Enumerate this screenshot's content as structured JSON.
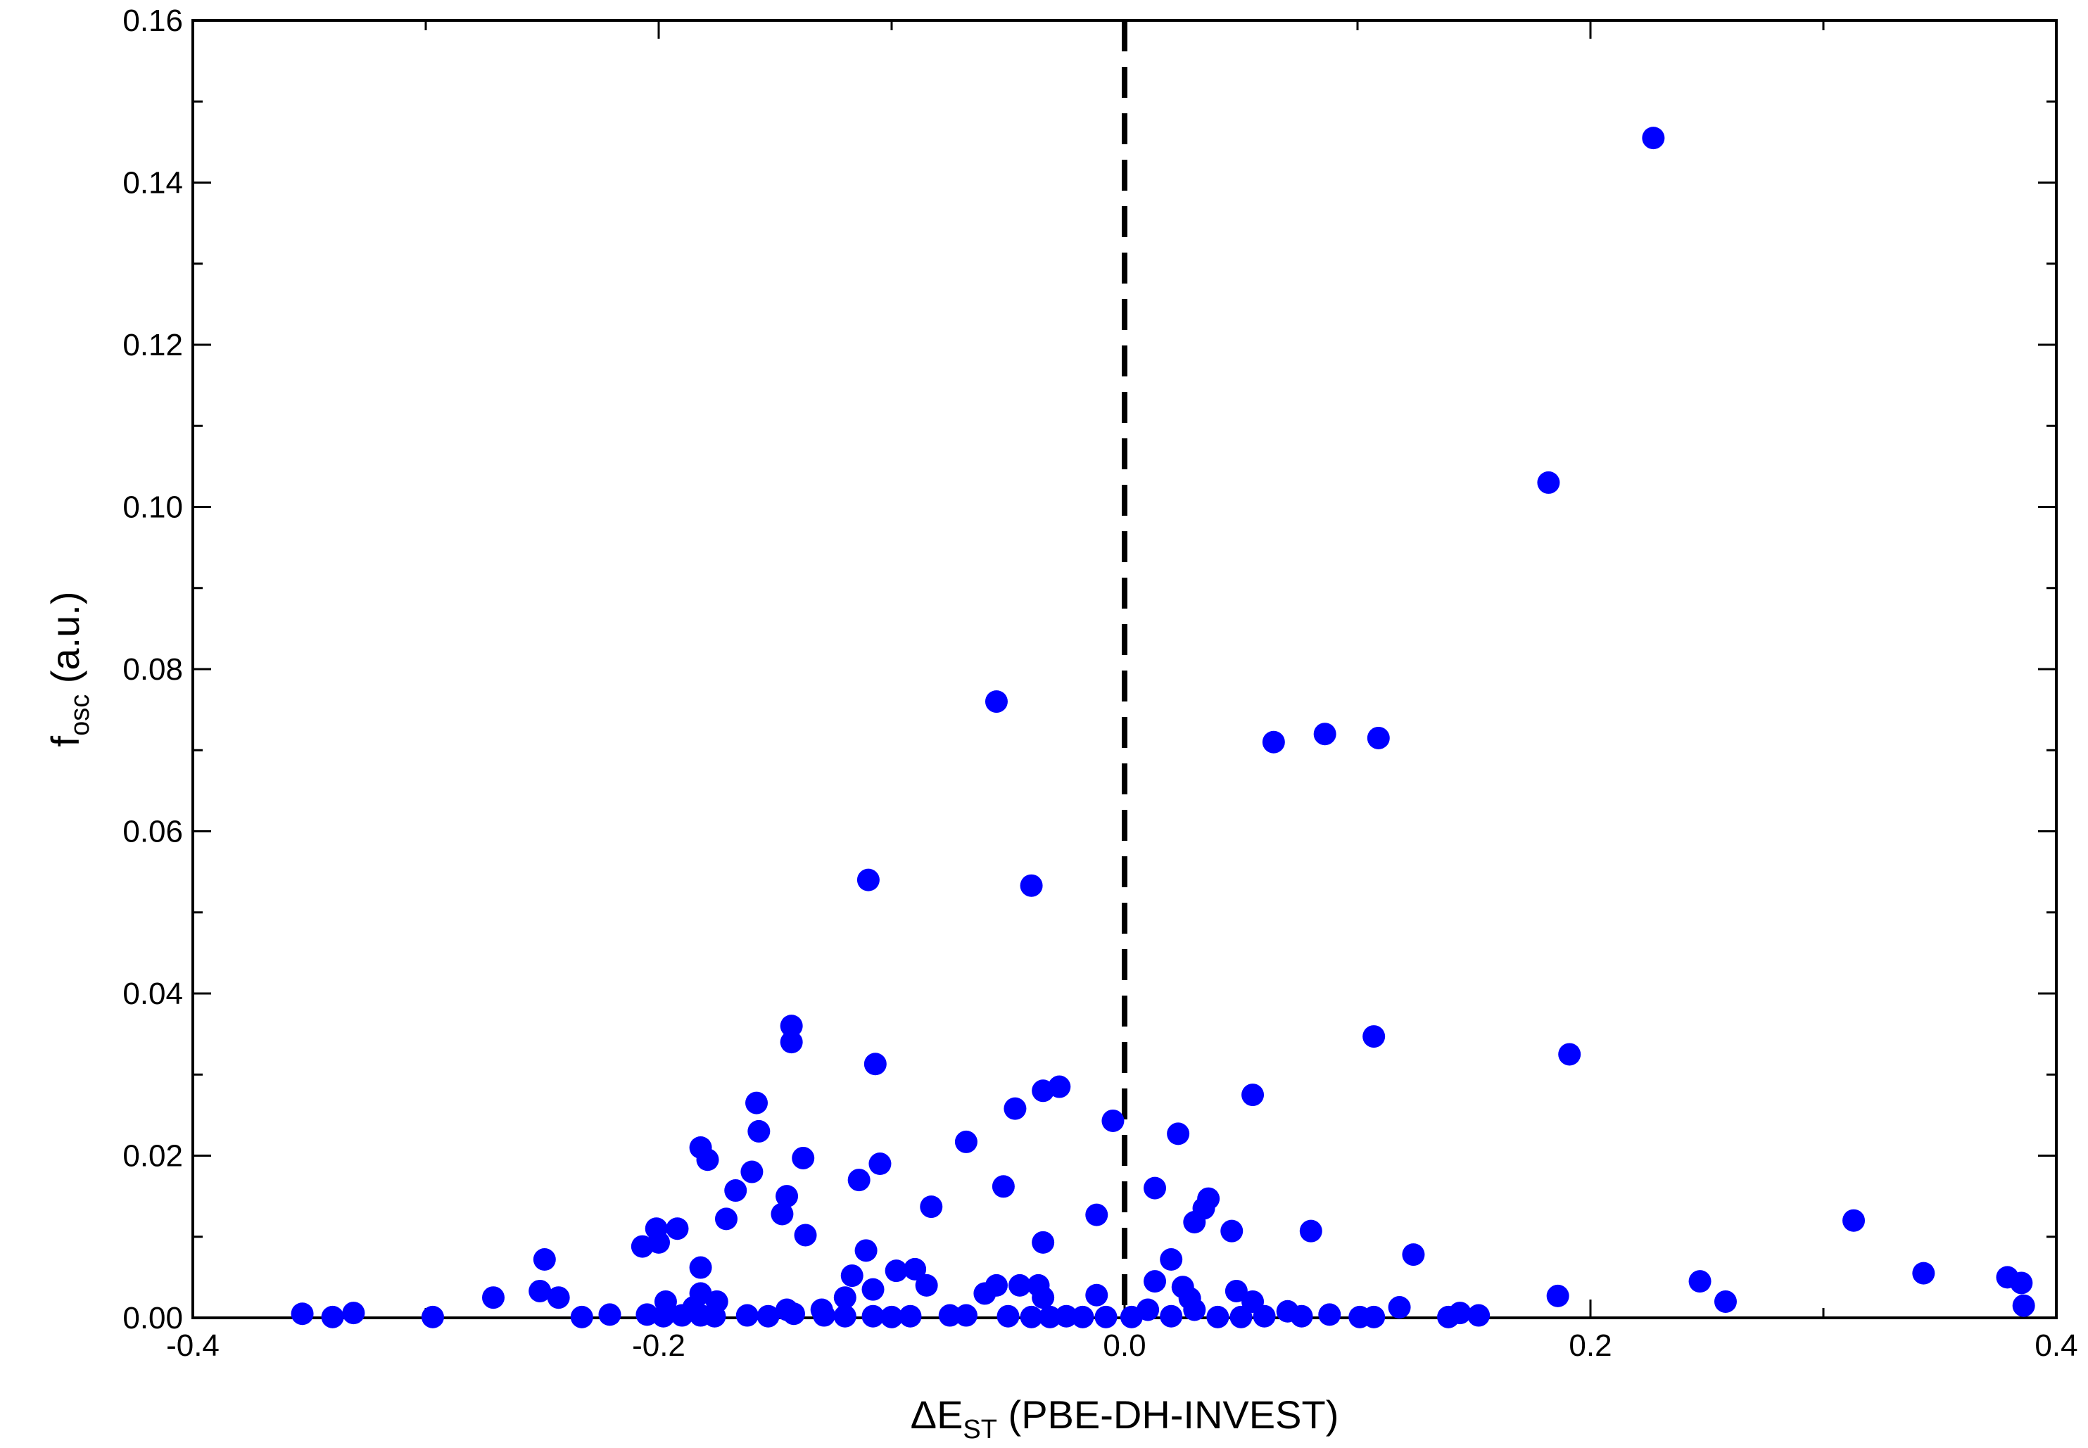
{
  "chart_data": {
    "type": "scatter",
    "xlabel_main": "ΔE",
    "xlabel_sub": "ST",
    "xlabel_rest": " (PBE-DH-INVEST)",
    "ylabel_main": "f",
    "ylabel_sub": "osc",
    "ylabel_rest": " (a.u.)",
    "xlim": [
      -0.4,
      0.4
    ],
    "ylim": [
      0,
      0.16
    ],
    "x_ticks": [
      "-0.4",
      "-0.2",
      "0.0",
      "0.2",
      "0.4"
    ],
    "y_ticks": [
      "0.00",
      "0.02",
      "0.04",
      "0.06",
      "0.08",
      "0.10",
      "0.12",
      "0.14",
      "0.16"
    ],
    "grid": false,
    "legend": "none",
    "reference_line": {
      "x": 0,
      "style": "dashed",
      "color": "#000000"
    },
    "marker_color": "#0000ff",
    "points": [
      [
        0.227,
        0.1455
      ],
      [
        0.182,
        0.103
      ],
      [
        -0.055,
        0.076
      ],
      [
        0.086,
        0.072
      ],
      [
        0.109,
        0.0715
      ],
      [
        0.064,
        0.071
      ],
      [
        -0.11,
        0.054
      ],
      [
        -0.04,
        0.0533
      ],
      [
        -0.143,
        0.036
      ],
      [
        -0.143,
        0.034
      ],
      [
        0.107,
        0.0347
      ],
      [
        0.191,
        0.0325
      ],
      [
        -0.107,
        0.0313
      ],
      [
        -0.028,
        0.0285
      ],
      [
        -0.035,
        0.028
      ],
      [
        0.055,
        0.0275
      ],
      [
        -0.158,
        0.0265
      ],
      [
        -0.047,
        0.0258
      ],
      [
        -0.005,
        0.0243
      ],
      [
        -0.157,
        0.023
      ],
      [
        0.023,
        0.0227
      ],
      [
        -0.068,
        0.0217
      ],
      [
        -0.182,
        0.021
      ],
      [
        -0.179,
        0.0195
      ],
      [
        -0.138,
        0.0197
      ],
      [
        -0.105,
        0.019
      ],
      [
        -0.16,
        0.018
      ],
      [
        -0.114,
        0.017
      ],
      [
        -0.052,
        0.0162
      ],
      [
        0.013,
        0.016
      ],
      [
        -0.167,
        0.0157
      ],
      [
        0.036,
        0.0147
      ],
      [
        -0.145,
        0.015
      ],
      [
        0.034,
        0.0135
      ],
      [
        -0.083,
        0.0137
      ],
      [
        -0.147,
        0.0128
      ],
      [
        -0.012,
        0.0127
      ],
      [
        -0.171,
        0.0122
      ],
      [
        0.03,
        0.0118
      ],
      [
        -0.192,
        0.011
      ],
      [
        -0.201,
        0.011
      ],
      [
        0.046,
        0.0107
      ],
      [
        0.08,
        0.0107
      ],
      [
        -0.137,
        0.0102
      ],
      [
        -0.2,
        0.0093
      ],
      [
        -0.207,
        0.0088
      ],
      [
        -0.035,
        0.0093
      ],
      [
        -0.111,
        0.0083
      ],
      [
        0.124,
        0.0078
      ],
      [
        -0.249,
        0.0072
      ],
      [
        0.02,
        0.0072
      ],
      [
        -0.182,
        0.0062
      ],
      [
        -0.09,
        0.006
      ],
      [
        -0.098,
        0.0058
      ],
      [
        0.343,
        0.0055
      ],
      [
        -0.117,
        0.0052
      ],
      [
        0.379,
        0.005
      ],
      [
        0.013,
        0.0045
      ],
      [
        0.247,
        0.0045
      ],
      [
        0.385,
        0.0043
      ],
      [
        -0.055,
        0.004
      ],
      [
        -0.045,
        0.004
      ],
      [
        -0.037,
        0.004
      ],
      [
        -0.085,
        0.004
      ],
      [
        0.025,
        0.0038
      ],
      [
        -0.108,
        0.0035
      ],
      [
        0.048,
        0.0033
      ],
      [
        -0.251,
        0.0033
      ],
      [
        0.313,
        0.012
      ],
      [
        -0.182,
        0.003
      ],
      [
        -0.06,
        0.003
      ],
      [
        -0.012,
        0.0028
      ],
      [
        -0.243,
        0.0025
      ],
      [
        -0.271,
        0.0025
      ],
      [
        -0.035,
        0.0025
      ],
      [
        0.186,
        0.0027
      ],
      [
        0.028,
        0.0024
      ],
      [
        0.055,
        0.002
      ],
      [
        -0.12,
        0.0025
      ],
      [
        -0.197,
        0.002
      ],
      [
        -0.175,
        0.002
      ],
      [
        0.258,
        0.002
      ],
      [
        0.386,
        0.0015
      ],
      [
        0.118,
        0.0013
      ],
      [
        -0.185,
        0.0013
      ],
      [
        -0.145,
        0.001
      ],
      [
        -0.13,
        0.001
      ],
      [
        0.01,
        0.001
      ],
      [
        0.03,
        0.001
      ],
      [
        0.07,
        0.0008
      ],
      [
        -0.353,
        0.0005
      ],
      [
        -0.331,
        0.0006
      ],
      [
        -0.34,
        0.0001
      ],
      [
        -0.297,
        0.0001
      ],
      [
        -0.233,
        0.0001
      ],
      [
        -0.221,
        0.0004
      ],
      [
        -0.205,
        0.0004
      ],
      [
        -0.198,
        0.0002
      ],
      [
        -0.19,
        0.0003
      ],
      [
        -0.182,
        0.0003
      ],
      [
        -0.176,
        0.0002
      ],
      [
        -0.162,
        0.0003
      ],
      [
        -0.153,
        0.0002
      ],
      [
        -0.142,
        0.0005
      ],
      [
        -0.129,
        0.0003
      ],
      [
        -0.12,
        0.0002
      ],
      [
        -0.108,
        0.0002
      ],
      [
        -0.1,
        0.0001
      ],
      [
        -0.092,
        0.0002
      ],
      [
        -0.075,
        0.0003
      ],
      [
        -0.068,
        0.0003
      ],
      [
        -0.05,
        0.0002
      ],
      [
        -0.04,
        0.0001
      ],
      [
        -0.032,
        0.0001
      ],
      [
        -0.025,
        0.0002
      ],
      [
        -0.018,
        0.0001
      ],
      [
        -0.008,
        0.0001
      ],
      [
        0.003,
        0.0001
      ],
      [
        0.02,
        0.0002
      ],
      [
        0.04,
        0.0001
      ],
      [
        0.05,
        0.0001
      ],
      [
        0.06,
        0.0002
      ],
      [
        0.076,
        0.0002
      ],
      [
        0.088,
        0.0004
      ],
      [
        0.101,
        0.0001
      ],
      [
        0.107,
        0.0001
      ],
      [
        0.139,
        0.0001
      ],
      [
        0.144,
        0.0006
      ],
      [
        0.152,
        0.0003
      ]
    ]
  }
}
